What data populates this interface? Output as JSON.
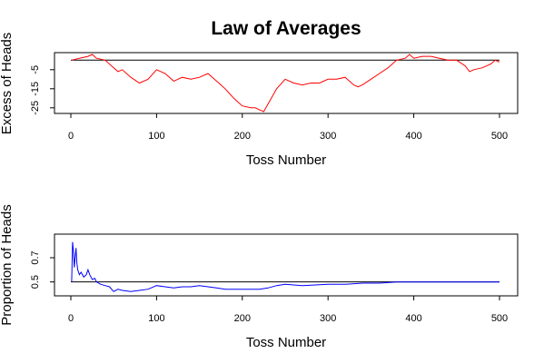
{
  "title": "Law of Averages",
  "colors": {
    "excess_line": "#ff0000",
    "proportion_line": "#0000ff",
    "reference_line": "#000000"
  },
  "chart_data": [
    {
      "type": "line",
      "ylabel": "Excess of Heads",
      "xlabel": "Toss Number",
      "xlim": [
        0,
        500
      ],
      "ylim": [
        -27,
        3
      ],
      "xticks": [
        "0",
        "100",
        "200",
        "300",
        "400",
        "500"
      ],
      "yticks": [
        "-5",
        "-15",
        "-25"
      ],
      "reference_y": 0,
      "grid": false,
      "series": [
        {
          "x": [
            1,
            10,
            20,
            25,
            30,
            40,
            50,
            55,
            60,
            70,
            80,
            90,
            100,
            110,
            120,
            130,
            140,
            150,
            160,
            170,
            180,
            190,
            200,
            210,
            215,
            220,
            225,
            230,
            240,
            250,
            260,
            270,
            280,
            290,
            300,
            310,
            320,
            330,
            335,
            340,
            350,
            360,
            370,
            380,
            390,
            395,
            400,
            410,
            420,
            430,
            440,
            450,
            460,
            465,
            470,
            480,
            490,
            495,
            500
          ],
          "y": [
            0,
            1,
            2,
            3,
            1,
            0,
            -4,
            -6,
            -5,
            -9,
            -12,
            -10,
            -5,
            -7,
            -11,
            -9,
            -10,
            -9,
            -7,
            -11,
            -15,
            -20,
            -24,
            -25,
            -25,
            -26,
            -27,
            -23,
            -15,
            -10,
            -12,
            -13,
            -12,
            -12,
            -10,
            -10,
            -9,
            -13,
            -14,
            -13,
            -10,
            -7,
            -4,
            0,
            1,
            3,
            1,
            2,
            2,
            1,
            0,
            0,
            -3,
            -6,
            -5,
            -4,
            -2,
            0,
            -1
          ]
        }
      ]
    },
    {
      "type": "line",
      "ylabel": "Proportion of Heads",
      "xlabel": "Toss Number",
      "xlim": [
        0,
        500
      ],
      "ylim": [
        0.4,
        0.88
      ],
      "xticks": [
        "0",
        "100",
        "200",
        "300",
        "400",
        "500"
      ],
      "yticks": [
        "0.5",
        "0.7"
      ],
      "reference_y": 0.5,
      "grid": false,
      "series": [
        {
          "x": [
            1,
            2,
            3,
            4,
            5,
            6,
            7,
            8,
            10,
            12,
            15,
            18,
            20,
            22,
            25,
            28,
            30,
            35,
            40,
            45,
            50,
            55,
            60,
            70,
            80,
            90,
            100,
            110,
            120,
            130,
            140,
            150,
            160,
            170,
            180,
            190,
            200,
            210,
            220,
            230,
            240,
            250,
            270,
            300,
            320,
            340,
            360,
            380,
            400,
            420,
            440,
            460,
            480,
            500
          ],
          "y": [
            0.5,
            0.83,
            0.76,
            0.62,
            0.7,
            0.78,
            0.66,
            0.6,
            0.56,
            0.58,
            0.54,
            0.56,
            0.6,
            0.56,
            0.52,
            0.53,
            0.5,
            0.48,
            0.47,
            0.46,
            0.42,
            0.44,
            0.43,
            0.42,
            0.43,
            0.44,
            0.47,
            0.46,
            0.45,
            0.46,
            0.46,
            0.47,
            0.46,
            0.45,
            0.44,
            0.44,
            0.44,
            0.44,
            0.44,
            0.45,
            0.47,
            0.48,
            0.47,
            0.48,
            0.48,
            0.49,
            0.49,
            0.5,
            0.5,
            0.5,
            0.5,
            0.5,
            0.5,
            0.5
          ]
        }
      ]
    }
  ]
}
